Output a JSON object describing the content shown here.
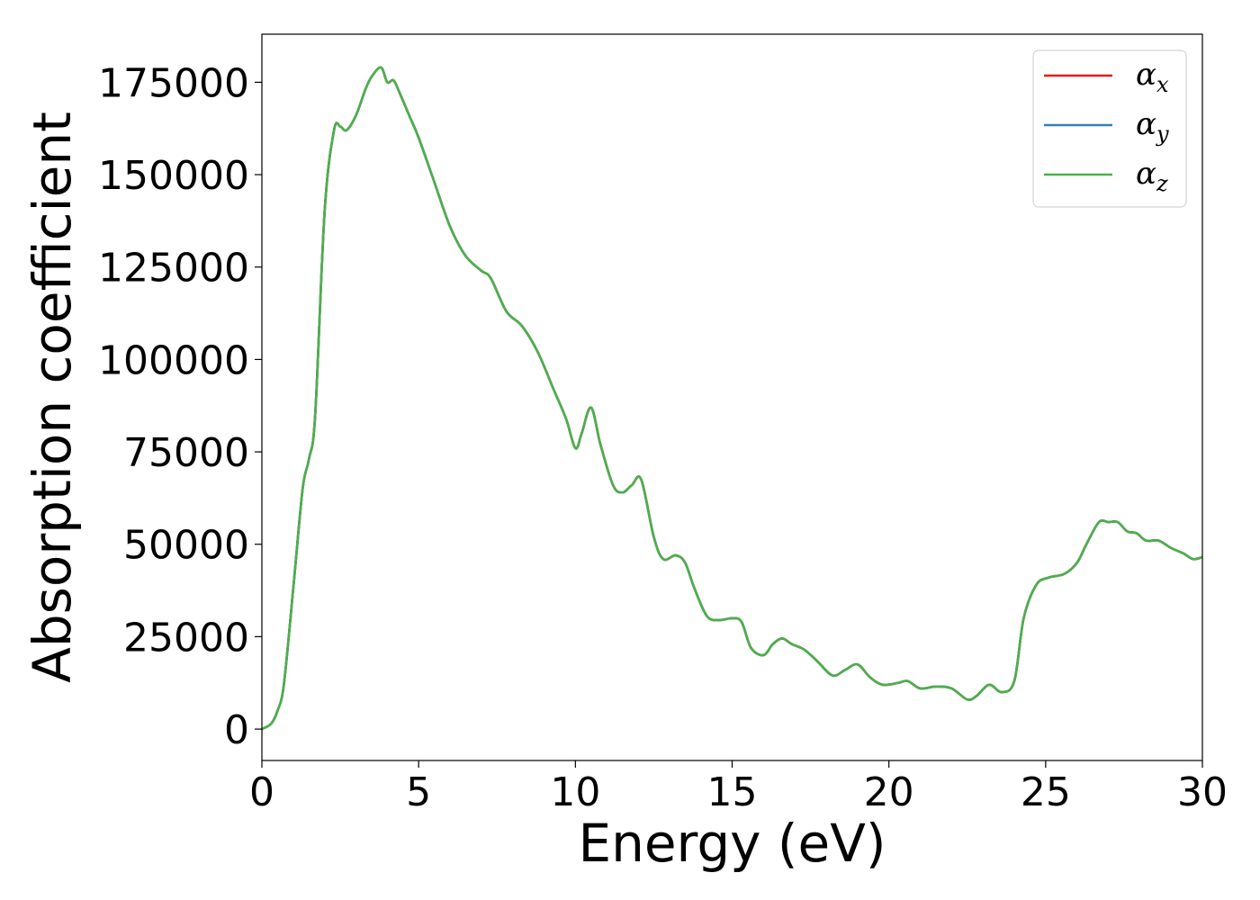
{
  "chart_data": {
    "type": "line",
    "xlabel": "Energy (eV)",
    "ylabel": "Absorption coefficient",
    "xlim": [
      0,
      30
    ],
    "ylim": [
      -8500,
      188000
    ],
    "xticks": [
      0,
      5,
      10,
      15,
      20,
      25,
      30
    ],
    "xtick_labels": [
      "0",
      "5",
      "10",
      "15",
      "20",
      "25",
      "30"
    ],
    "yticks": [
      0,
      25000,
      50000,
      75000,
      100000,
      125000,
      150000,
      175000
    ],
    "ytick_labels": [
      "0",
      "25000",
      "50000",
      "75000",
      "100000",
      "125000",
      "150000",
      "175000"
    ],
    "grid": false,
    "legend_position": "top-right",
    "x": [
      0,
      0.3,
      0.5,
      0.7,
      1.0,
      1.3,
      1.5,
      1.7,
      2.0,
      2.3,
      2.5,
      2.7,
      3.0,
      3.3,
      3.5,
      3.8,
      4.0,
      4.2,
      4.4,
      4.7,
      5.0,
      5.5,
      6.0,
      6.5,
      7.0,
      7.3,
      7.8,
      8.3,
      8.8,
      9.3,
      9.7,
      10.0,
      10.2,
      10.5,
      10.8,
      11.2,
      11.5,
      11.8,
      12.1,
      12.5,
      12.8,
      13.2,
      13.5,
      13.8,
      14.2,
      14.6,
      15.0,
      15.3,
      15.6,
      16.0,
      16.3,
      16.6,
      16.9,
      17.3,
      17.7,
      18.2,
      18.6,
      19.0,
      19.4,
      19.8,
      20.3,
      20.6,
      21.0,
      21.5,
      22.0,
      22.5,
      22.8,
      23.2,
      23.6,
      24.0,
      24.3,
      24.7,
      25.1,
      25.6,
      26.0,
      26.3,
      26.7,
      27.0,
      27.3,
      27.6,
      27.9,
      28.2,
      28.6,
      29.0,
      29.4,
      29.7,
      30.0
    ],
    "series": [
      {
        "name": "α_x",
        "color": "#e41a1c",
        "values": [
          0,
          1500,
          5000,
          12000,
          38000,
          65000,
          73000,
          85000,
          140000,
          162000,
          163000,
          162000,
          166000,
          173000,
          176500,
          179000,
          175000,
          175500,
          172000,
          166000,
          160000,
          148000,
          136000,
          128000,
          124000,
          122000,
          113000,
          109000,
          102000,
          92000,
          84000,
          76000,
          80000,
          87000,
          77000,
          66000,
          64000,
          66000,
          67500,
          52000,
          46000,
          47000,
          45000,
          38000,
          30500,
          29500,
          30000,
          29000,
          22000,
          20000,
          23000,
          24500,
          23000,
          21500,
          18500,
          14500,
          16000,
          17500,
          14000,
          12000,
          12500,
          13000,
          11000,
          11500,
          11000,
          8000,
          9000,
          12000,
          10000,
          13000,
          30000,
          39000,
          41000,
          42000,
          45000,
          50000,
          56000,
          56000,
          56000,
          53500,
          53000,
          51000,
          51000,
          49000,
          47500,
          46000,
          46500
        ]
      },
      {
        "name": "α_y",
        "color": "#377eb8",
        "values": [
          0,
          1500,
          5000,
          12000,
          38000,
          65000,
          73000,
          85000,
          140000,
          162000,
          163000,
          162000,
          166000,
          173000,
          176500,
          179000,
          175000,
          175500,
          172000,
          166000,
          160000,
          148000,
          136000,
          128000,
          124000,
          122000,
          113000,
          109000,
          102000,
          92000,
          84000,
          76000,
          80000,
          87000,
          77000,
          66000,
          64000,
          66000,
          67500,
          52000,
          46000,
          47000,
          45000,
          38000,
          30500,
          29500,
          30000,
          29000,
          22000,
          20000,
          23000,
          24500,
          23000,
          21500,
          18500,
          14500,
          16000,
          17500,
          14000,
          12000,
          12500,
          13000,
          11000,
          11500,
          11000,
          8000,
          9000,
          12000,
          10000,
          13000,
          30000,
          39000,
          41000,
          42000,
          45000,
          50000,
          56000,
          56000,
          56000,
          53500,
          53000,
          51000,
          51000,
          49000,
          47500,
          46000,
          46500
        ]
      },
      {
        "name": "α_z",
        "color": "#4daf4a",
        "values": [
          0,
          1500,
          5000,
          12000,
          38000,
          65000,
          73000,
          85000,
          140000,
          162000,
          163000,
          162000,
          166000,
          173000,
          176500,
          179000,
          175000,
          175500,
          172000,
          166000,
          160000,
          148000,
          136000,
          128000,
          124000,
          122000,
          113000,
          109000,
          102000,
          92000,
          84000,
          76000,
          80000,
          87000,
          77000,
          66000,
          64000,
          66000,
          67500,
          52000,
          46000,
          47000,
          45000,
          38000,
          30500,
          29500,
          30000,
          29000,
          22000,
          20000,
          23000,
          24500,
          23000,
          21500,
          18500,
          14500,
          16000,
          17500,
          14000,
          12000,
          12500,
          13000,
          11000,
          11500,
          11000,
          8000,
          9000,
          12000,
          10000,
          13000,
          30000,
          39000,
          41000,
          42000,
          45000,
          50000,
          56000,
          56000,
          56000,
          53500,
          53000,
          51000,
          51000,
          49000,
          47500,
          46000,
          46500
        ]
      }
    ],
    "legend": [
      {
        "symbol": "α",
        "subscript": "x",
        "color": "#e41a1c"
      },
      {
        "symbol": "α",
        "subscript": "y",
        "color": "#377eb8"
      },
      {
        "symbol": "α",
        "subscript": "z",
        "color": "#4daf4a"
      }
    ]
  }
}
